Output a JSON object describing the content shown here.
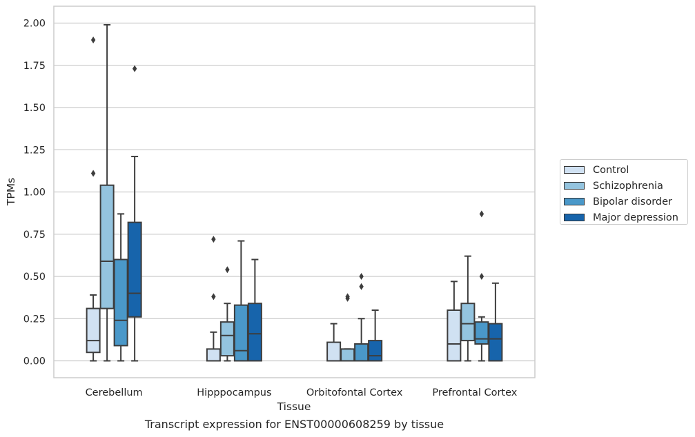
{
  "chart_data": {
    "type": "box",
    "title": "",
    "caption": "Transcript expression for ENST00000608259 by tissue",
    "xlabel": "Tissue",
    "ylabel": "TPMs",
    "ylim": [
      -0.1,
      2.1
    ],
    "yticks": [
      "0.00",
      "0.25",
      "0.50",
      "0.75",
      "1.00",
      "1.25",
      "1.50",
      "1.75",
      "2.00"
    ],
    "grid": "horizontal",
    "legend_position": "right",
    "categories": [
      "Cerebellum",
      "Hipppocampus",
      "Orbitofontal Cortex",
      "Prefrontal Cortex"
    ],
    "series": [
      {
        "name": "Control",
        "color": "#d0e1f2",
        "boxes": [
          {
            "min": 0.0,
            "q1": 0.05,
            "median": 0.12,
            "q3": 0.31,
            "max": 0.39,
            "outliers": [
              1.11,
              1.9
            ]
          },
          {
            "min": 0.0,
            "q1": 0.0,
            "median": 0.0,
            "q3": 0.07,
            "max": 0.17,
            "outliers": [
              0.38,
              0.72
            ]
          },
          {
            "min": 0.0,
            "q1": 0.0,
            "median": 0.0,
            "q3": 0.11,
            "max": 0.22,
            "outliers": []
          },
          {
            "min": 0.0,
            "q1": 0.0,
            "median": 0.1,
            "q3": 0.3,
            "max": 0.47,
            "outliers": []
          }
        ]
      },
      {
        "name": "Schizophrenia",
        "color": "#94c4df",
        "boxes": [
          {
            "min": 0.0,
            "q1": 0.31,
            "median": 0.59,
            "q3": 1.04,
            "max": 1.99,
            "outliers": []
          },
          {
            "min": 0.0,
            "q1": 0.03,
            "median": 0.15,
            "q3": 0.23,
            "max": 0.34,
            "outliers": [
              0.54
            ]
          },
          {
            "min": 0.0,
            "q1": 0.0,
            "median": 0.0,
            "q3": 0.07,
            "max": 0.07,
            "outliers": [
              0.37,
              0.38
            ]
          },
          {
            "min": 0.0,
            "q1": 0.12,
            "median": 0.22,
            "q3": 0.34,
            "max": 0.62,
            "outliers": []
          }
        ]
      },
      {
        "name": "Bipolar disorder",
        "color": "#4a98c9",
        "boxes": [
          {
            "min": 0.0,
            "q1": 0.09,
            "median": 0.24,
            "q3": 0.6,
            "max": 0.87,
            "outliers": []
          },
          {
            "min": 0.0,
            "q1": 0.0,
            "median": 0.06,
            "q3": 0.33,
            "max": 0.71,
            "outliers": []
          },
          {
            "min": 0.0,
            "q1": 0.0,
            "median": 0.0,
            "q3": 0.1,
            "max": 0.25,
            "outliers": [
              0.44,
              0.5
            ]
          },
          {
            "min": 0.0,
            "q1": 0.1,
            "median": 0.13,
            "q3": 0.23,
            "max": 0.26,
            "outliers": [
              0.5,
              0.87
            ]
          }
        ]
      },
      {
        "name": "Major depression",
        "color": "#1764ab",
        "boxes": [
          {
            "min": 0.0,
            "q1": 0.26,
            "median": 0.4,
            "q3": 0.82,
            "max": 1.21,
            "outliers": [
              1.73
            ]
          },
          {
            "min": 0.0,
            "q1": 0.0,
            "median": 0.16,
            "q3": 0.34,
            "max": 0.6,
            "outliers": []
          },
          {
            "min": 0.0,
            "q1": 0.0,
            "median": 0.03,
            "q3": 0.12,
            "max": 0.3,
            "outliers": []
          },
          {
            "min": 0.0,
            "q1": 0.0,
            "median": 0.13,
            "q3": 0.22,
            "max": 0.46,
            "outliers": []
          }
        ]
      }
    ]
  }
}
